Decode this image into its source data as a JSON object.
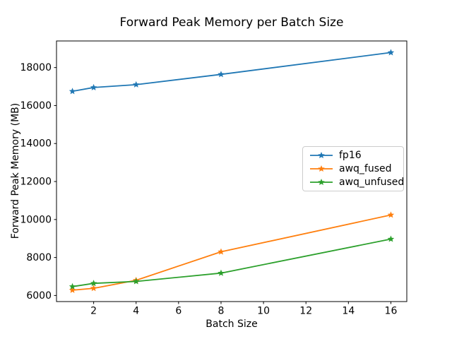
{
  "chart_data": {
    "type": "line",
    "title": "Forward Peak Memory per Batch Size",
    "xlabel": "Batch Size",
    "ylabel": "Forward Peak Memory (MB)",
    "x": [
      1,
      2,
      4,
      8,
      16
    ],
    "series": [
      {
        "name": "fp16",
        "color": "#1f77b4",
        "values": [
          16750,
          16950,
          17100,
          17640,
          18790
        ]
      },
      {
        "name": "awq_fused",
        "color": "#ff7f0e",
        "values": [
          6280,
          6380,
          6800,
          8300,
          10240
        ]
      },
      {
        "name": "awq_unfused",
        "color": "#2ca02c",
        "values": [
          6470,
          6640,
          6740,
          7180,
          8970
        ]
      }
    ],
    "xticks": [
      2,
      4,
      6,
      8,
      10,
      12,
      14,
      16
    ],
    "yticks": [
      6000,
      8000,
      10000,
      12000,
      14000,
      16000,
      18000
    ],
    "xlim": [
      0.25,
      16.75
    ],
    "ylim": [
      5680,
      19400
    ],
    "grid": false,
    "legend_position": "center right",
    "marker": "star",
    "spine_color": "#000000",
    "background": "#ffffff"
  }
}
